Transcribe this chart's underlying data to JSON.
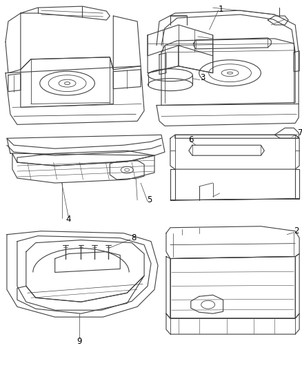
{
  "background_color": "#ffffff",
  "line_color": "#404040",
  "text_color": "#000000",
  "label_fontsize": 8.5,
  "fig_width": 4.39,
  "fig_height": 5.33,
  "dpi": 100
}
